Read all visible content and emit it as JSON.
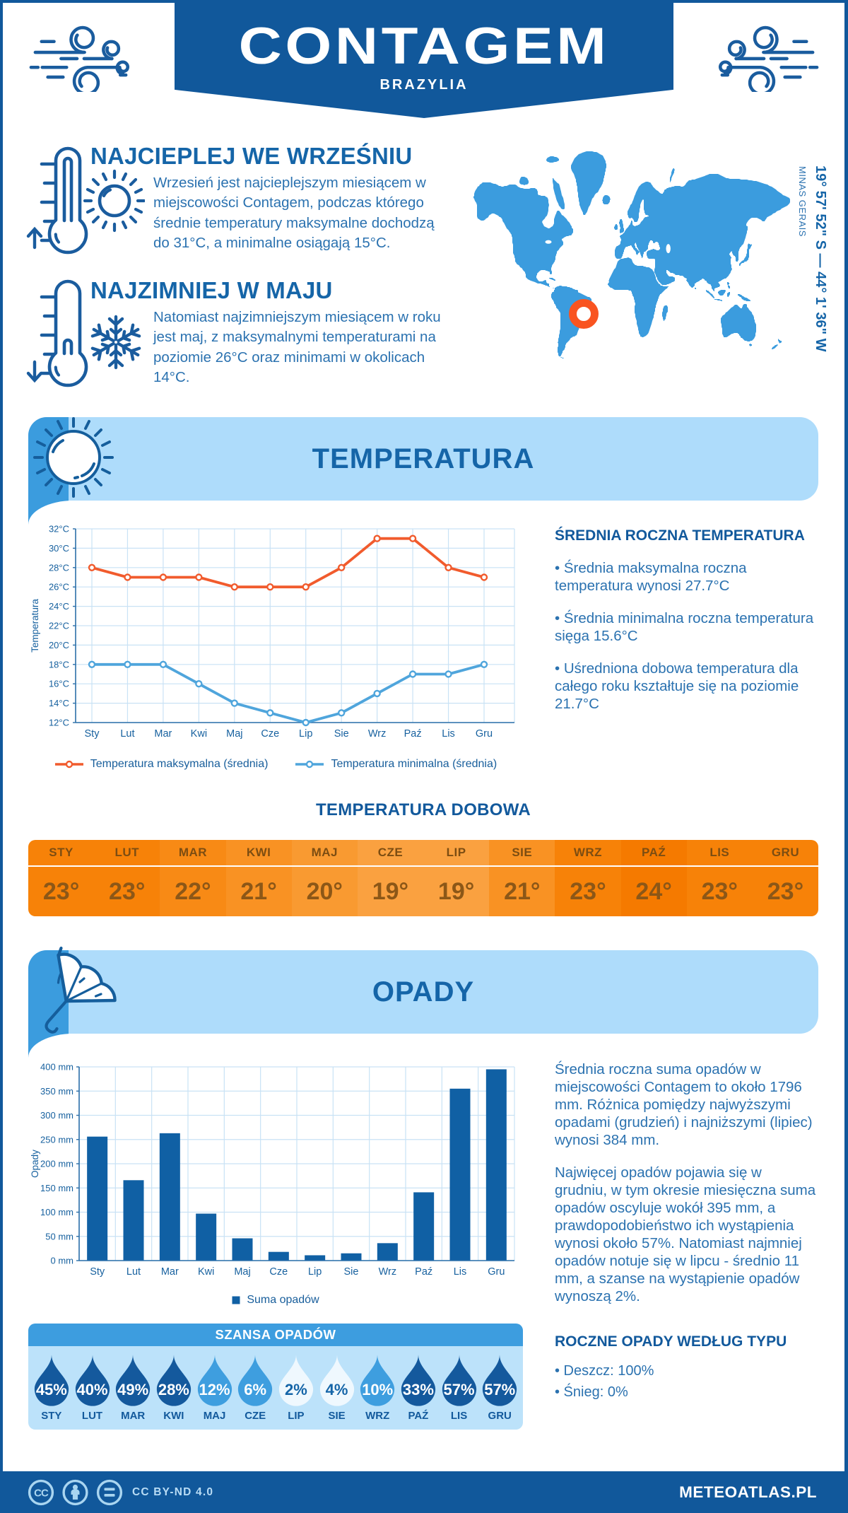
{
  "header": {
    "title": "CONTAGEM",
    "subtitle": "BRAZYLIA"
  },
  "intro": {
    "warmest": {
      "heading": "NAJCIEPLEJ WE WRZEŚNIU",
      "text": "Wrzesień jest najcieplejszym miesiącem w\nmiejscowości Contagem, podczas którego\nśrednie temperatury maksymalne dochodzą\ndo 31°C, a minimalne osiągają 15°C."
    },
    "coldest": {
      "heading": "NAJZIMNIEJ W MAJU",
      "text": "Natomiast najzimniejszym miesiącem w roku\njest maj, z maksymalnymi temperaturami na\npoziomie 26°C oraz minimami w okolicach\n14°C."
    }
  },
  "map": {
    "coordinates": "19° 57' 52\" S — 44° 1' 36\" W",
    "region": "MINAS GERAIS",
    "land_color": "#3B9CDE",
    "marker_color": "#F95420"
  },
  "temperature": {
    "band_title": "TEMPERATURA",
    "summary_heading": "ŚREDNIA ROCZNA TEMPERATURA",
    "bullets": [
      "• Średnia maksymalna roczna\ntemperatura wynosi 27.7°C",
      "• Średnia minimalna roczna temperatura\nsięga 15.6°C",
      "• Uśredniona dobowa temperatura dla\ncałego roku kształtuje się na poziomie\n21.7°C"
    ],
    "daily_heading": "TEMPERATURA DOBOWA",
    "daily": {
      "months": [
        "STY",
        "LUT",
        "MAR",
        "KWI",
        "MAJ",
        "CZE",
        "LIP",
        "SIE",
        "WRZ",
        "PAŹ",
        "LIS",
        "GRU"
      ],
      "values": [
        "23°",
        "23°",
        "22°",
        "21°",
        "20°",
        "19°",
        "19°",
        "21°",
        "23°",
        "24°",
        "23°",
        "23°"
      ],
      "cell_colors": [
        "#F78208",
        "#F78208",
        "#F88A15",
        "#F99223",
        "#F99A31",
        "#FAA140",
        "#FAA140",
        "#F99223",
        "#F78208",
        "#F57A00",
        "#F78208",
        "#F78208"
      ]
    }
  },
  "precipitation": {
    "band_title": "OPADY",
    "paragraphs": [
      "Średnia roczna suma opadów w\nmiejscowości Contagem to około 1796\nmm. Różnica pomiędzy najwyższymi\nopadami (grudzień) i najniższymi (lipiec)\nwynosi 384 mm.",
      "Najwięcej opadów pojawia się w\ngrudniu, w tym okresie miesięczna suma\nopadów oscyluje wokół 395 mm, a\nprawdopodobieństwo ich wystąpienia\nwynosi około 57%. Natomiast najmniej\nopadów notuje się w lipcu - średnio 11\nmm, a szanse na wystąpienie opadów\nwynoszą 2%."
    ],
    "chance_heading": "SZANSA OPADÓW",
    "chance": [
      {
        "month": "STY",
        "value": "45%",
        "tone": "dark"
      },
      {
        "month": "LUT",
        "value": "40%",
        "tone": "dark"
      },
      {
        "month": "MAR",
        "value": "49%",
        "tone": "dark"
      },
      {
        "month": "KWI",
        "value": "28%",
        "tone": "dark"
      },
      {
        "month": "MAJ",
        "value": "12%",
        "tone": "medium"
      },
      {
        "month": "CZE",
        "value": "6%",
        "tone": "medium"
      },
      {
        "month": "LIP",
        "value": "2%",
        "tone": "light"
      },
      {
        "month": "SIE",
        "value": "4%",
        "tone": "light"
      },
      {
        "month": "WRZ",
        "value": "10%",
        "tone": "medium"
      },
      {
        "month": "PAŹ",
        "value": "33%",
        "tone": "dark"
      },
      {
        "month": "LIS",
        "value": "57%",
        "tone": "dark"
      },
      {
        "month": "GRU",
        "value": "57%",
        "tone": "dark"
      }
    ],
    "type_heading": "ROCZNE OPADY WEDŁUG TYPU",
    "type_bullets": "• Deszcz: 100%\n• Śnieg: 0%"
  },
  "chart_data": [
    {
      "type": "line",
      "categories": [
        "Sty",
        "Lut",
        "Mar",
        "Kwi",
        "Maj",
        "Cze",
        "Lip",
        "Sie",
        "Wrz",
        "Paź",
        "Lis",
        "Gru"
      ],
      "series": [
        {
          "name": "Temperatura maksymalna (średnia)",
          "color": "#F15B2D",
          "values": [
            28,
            27,
            27,
            27,
            26,
            26,
            26,
            28,
            31,
            31,
            28,
            27
          ]
        },
        {
          "name": "Temperatura minimalna (średnia)",
          "color": "#4FA5DC",
          "values": [
            18,
            18,
            18,
            16,
            14,
            13,
            12,
            13,
            15,
            17,
            17,
            18
          ]
        }
      ],
      "title": "",
      "xlabel": "",
      "ylabel": "Temperatura",
      "ylim": [
        12,
        32
      ],
      "ytick_step": 2,
      "ytick_suffix": "°C",
      "grid": true,
      "legend_position": "bottom"
    },
    {
      "type": "bar",
      "categories": [
        "Sty",
        "Lut",
        "Mar",
        "Kwi",
        "Maj",
        "Cze",
        "Lip",
        "Sie",
        "Wrz",
        "Paź",
        "Lis",
        "Gru"
      ],
      "series": [
        {
          "name": "Suma opadów",
          "color": "#1060A4",
          "values": [
            256,
            166,
            263,
            97,
            46,
            18,
            11,
            15,
            36,
            141,
            355,
            395
          ]
        }
      ],
      "title": "",
      "xlabel": "",
      "ylabel": "Opady",
      "ylim": [
        0,
        400
      ],
      "ytick_step": 50,
      "ytick_suffix": " mm",
      "grid": true,
      "legend_position": "bottom"
    }
  ],
  "footer": {
    "license": "CC BY-ND 4.0",
    "brand": "METEOATLAS.PL"
  },
  "colors": {
    "primary_dark": "#11589B",
    "heading_blue": "#1565A8",
    "body_blue": "#2B72B0",
    "medium_blue": "#3B9CDE",
    "band_light_blue": "#AEDCFB",
    "panel_light_blue": "#BCE2FA",
    "grid_line": "#C9E2F5",
    "axis_line": "#2B6FA9",
    "tick_label": "#17619F",
    "drop_dark": "#14599D",
    "drop_medium": "#3E9EDF",
    "drop_light": "#EFF8FE",
    "drop_light_text": "#1565A8"
  }
}
